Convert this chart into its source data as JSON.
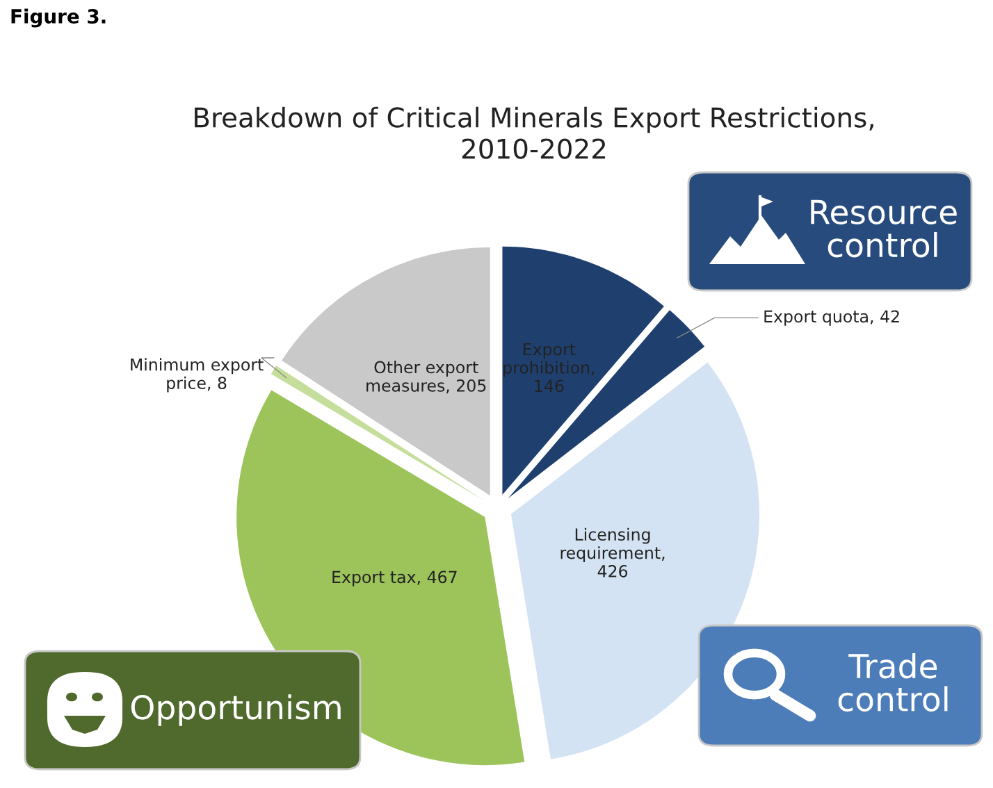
{
  "chart_data": {
    "type": "pie",
    "title": "Breakdown of Critical Minerals Export Restrictions, 2010-2022",
    "categories": [
      "Export prohibition, 146",
      "Export quota, 42",
      "Licensing requirement, 426",
      "Export tax, 467",
      "Minimum export price, 8",
      "Other export measures, 205"
    ],
    "values": [
      146,
      42,
      426,
      467,
      8,
      205
    ],
    "colors": [
      "#1f406f",
      "#1f406f",
      "#d4e3f3",
      "#9dc45a",
      "#c6de9c",
      "#c9c9c9"
    ],
    "legend": false,
    "annotations": [
      "Figure 3.",
      "Resource control",
      "Trade control",
      "Opportunism"
    ]
  }
}
